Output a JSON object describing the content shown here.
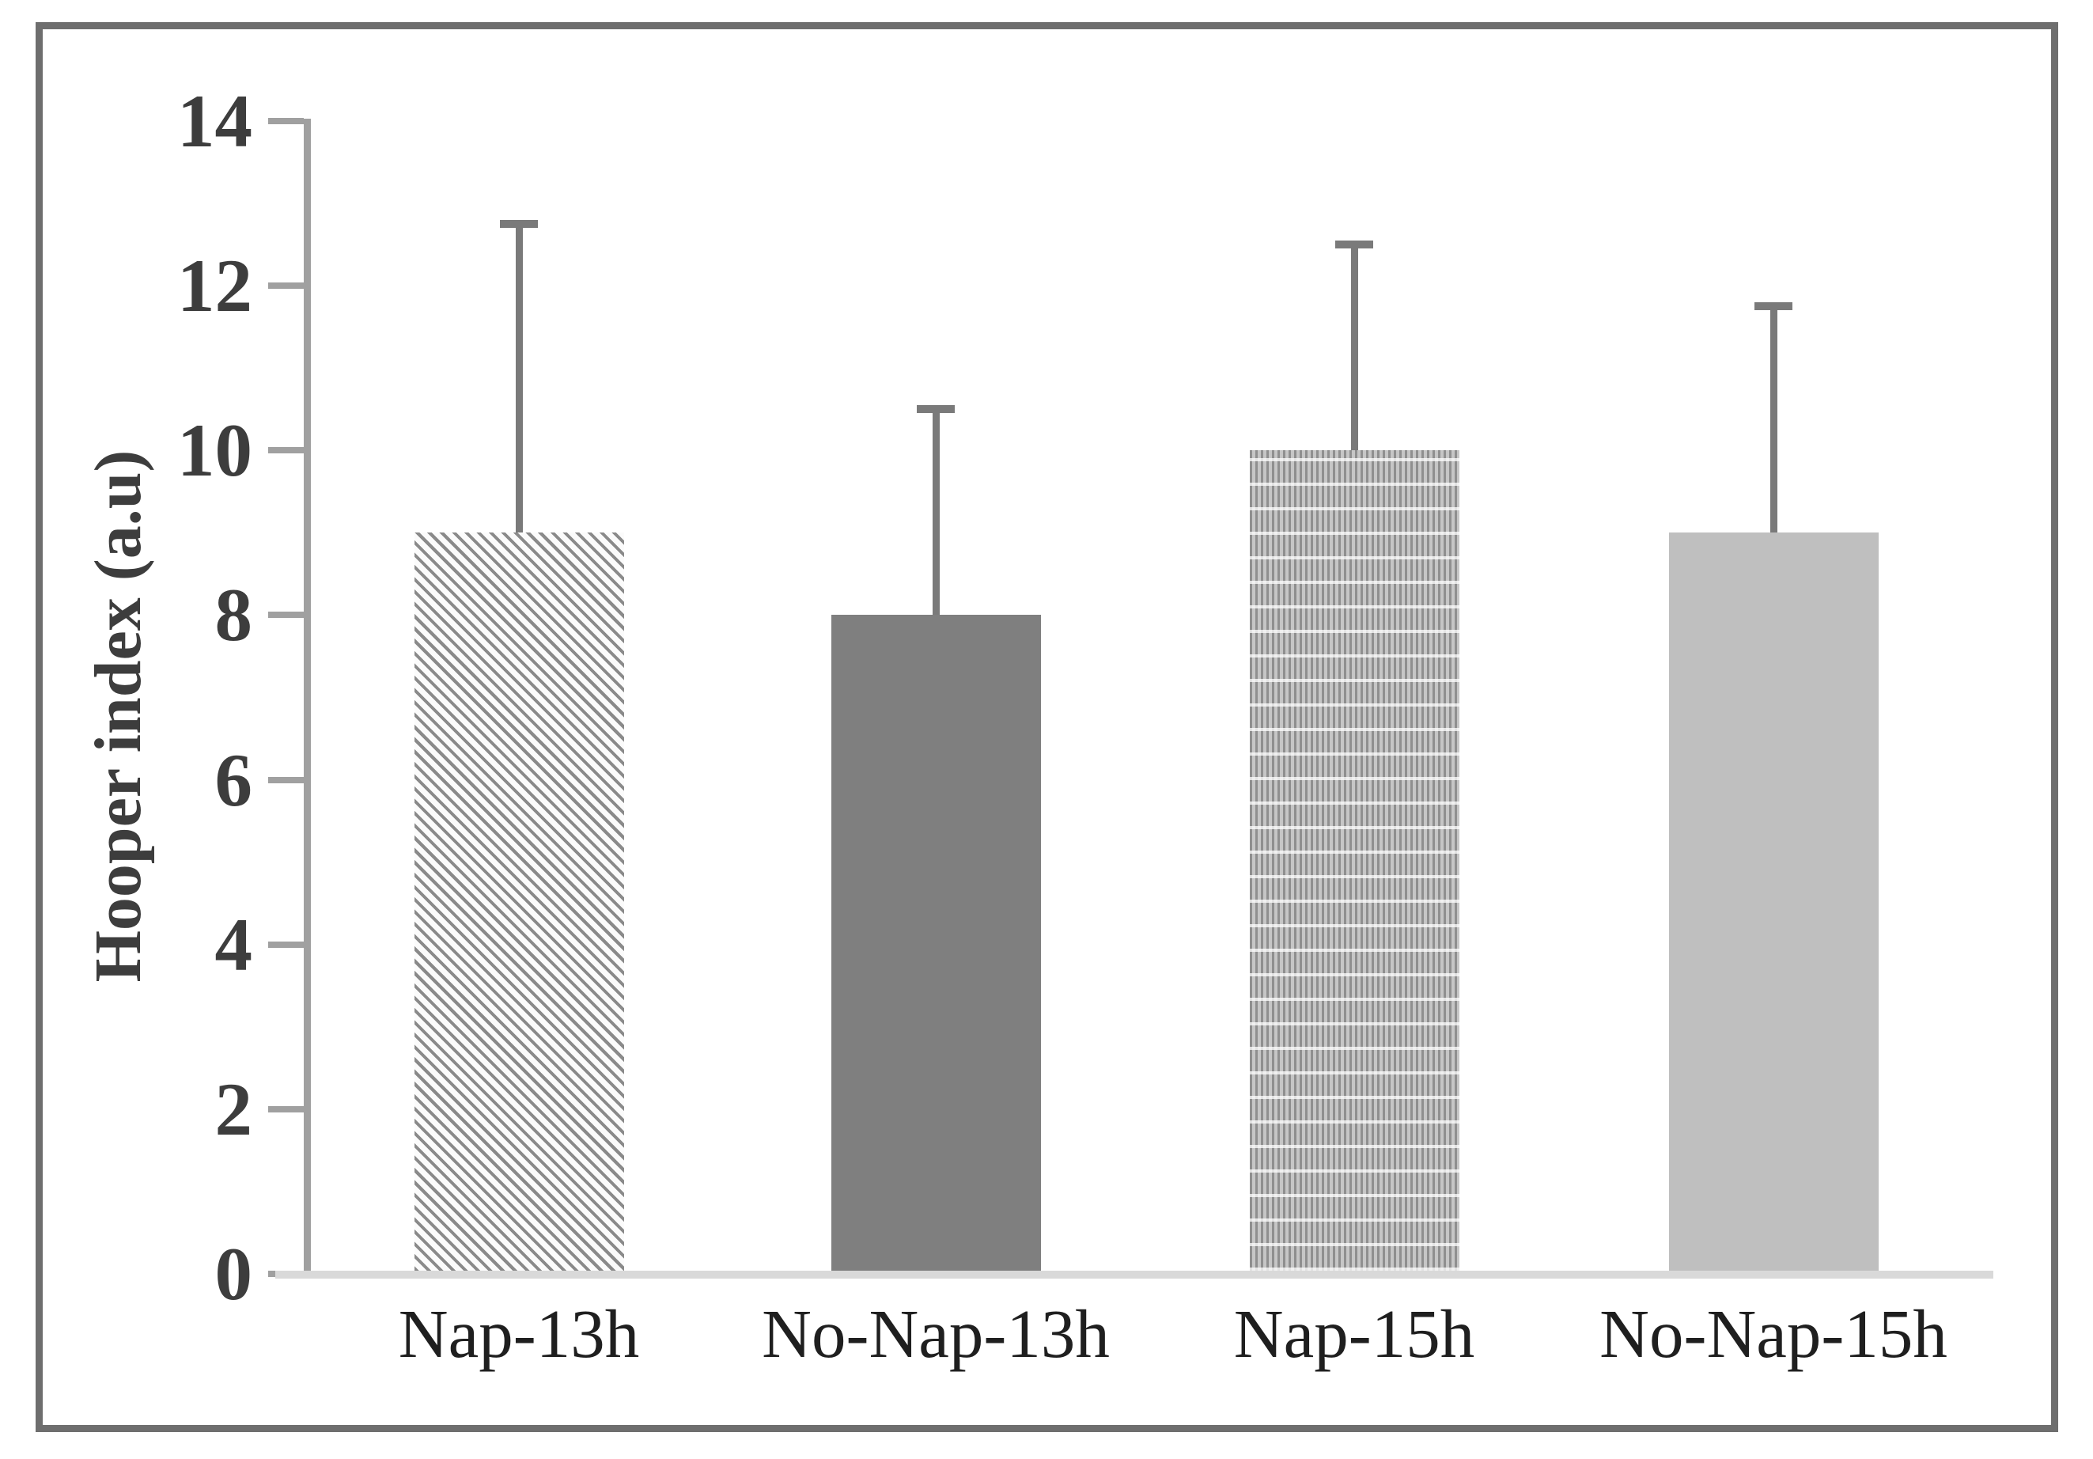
{
  "figure": {
    "frame_color": "#6e6e6e",
    "background": "#ffffff"
  },
  "chart_data": {
    "type": "bar",
    "title": "",
    "categories": [
      "Nap-13h",
      "No-Nap-13h",
      "Nap-15h",
      "No-Nap-15h"
    ],
    "values": [
      9.0,
      8.0,
      10.0,
      9.0
    ],
    "error_plus": [
      3.75,
      2.5,
      2.5,
      2.75
    ],
    "error_bar_tops": [
      12.75,
      10.5,
      12.5,
      11.75
    ],
    "xlabel": "",
    "ylabel": "Hooper index (a.u)",
    "ylim": [
      0,
      14
    ],
    "yticks": [
      0,
      2,
      4,
      6,
      8,
      10,
      12,
      14
    ],
    "grid": false,
    "legend": null,
    "bar_styles": [
      {
        "pattern": "diagonal-hatch",
        "fill": "#fbfbfb",
        "stroke": "#8a8a8a"
      },
      {
        "pattern": "solid",
        "fill": "#7f7f7f",
        "stroke": "#7f7f7f"
      },
      {
        "pattern": "dotted-grid",
        "fill": "#c6c6c6",
        "stroke": "#8f8f8f"
      },
      {
        "pattern": "solid",
        "fill": "#bfbfbf",
        "stroke": "#bfbfbf"
      }
    ],
    "error_bar_color": "#7a7a7a",
    "axis_color": "#a0a0a0",
    "baseline_color": "#d9d9d9",
    "ytick_label_color": "#3d3d3d",
    "xtick_label_color": "#1f1f1f"
  }
}
